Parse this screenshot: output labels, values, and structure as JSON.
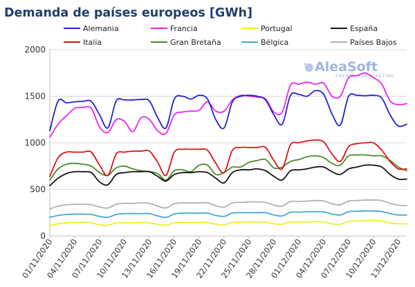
{
  "chart_data": {
    "type": "line",
    "title": "Demanda de países europeos [GWh]",
    "xlabel": "",
    "ylabel": "",
    "ylim": [
      0,
      2000
    ],
    "yticks": [
      0,
      500,
      1000,
      1500,
      2000
    ],
    "x_start": "01/11/2020",
    "x_end": "14/12/2020",
    "x_tick_labels": [
      "01/11/2020",
      "04/11/2020",
      "07/11/2020",
      "10/11/2020",
      "13/11/2020",
      "16/11/2020",
      "19/11/2020",
      "22/11/2020",
      "25/11/2020",
      "28/11/2020",
      "01/12/2020",
      "04/12/2020",
      "07/12/2020",
      "10/12/2020",
      "13/12/2020"
    ],
    "grid": "horizontal",
    "legend_placement": "top",
    "logo": {
      "main": "AleaSoft",
      "sub": "ENERGY FORECASTING"
    },
    "series": [
      {
        "name": "Alemania",
        "color": "#1f1fd6",
        "values": [
          1130,
          1450,
          1430,
          1440,
          1445,
          1445,
          1300,
          1160,
          1450,
          1460,
          1460,
          1465,
          1450,
          1270,
          1160,
          1470,
          1500,
          1470,
          1510,
          1470,
          1250,
          1160,
          1440,
          1500,
          1510,
          1500,
          1460,
          1300,
          1200,
          1510,
          1520,
          1500,
          1560,
          1520,
          1310,
          1190,
          1500,
          1510,
          1505,
          1510,
          1480,
          1300,
          1180,
          1200
        ]
      },
      {
        "name": "Francia",
        "color": "#ee22ee",
        "values": [
          1060,
          1200,
          1290,
          1370,
          1380,
          1370,
          1170,
          1110,
          1250,
          1230,
          1120,
          1270,
          1250,
          1130,
          1100,
          1300,
          1330,
          1340,
          1350,
          1440,
          1340,
          1340,
          1460,
          1510,
          1500,
          1490,
          1470,
          1330,
          1330,
          1620,
          1630,
          1650,
          1630,
          1640,
          1500,
          1500,
          1700,
          1720,
          1750,
          1700,
          1630,
          1450,
          1410,
          1420
        ]
      },
      {
        "name": "Portugal",
        "color": "#f0ee22",
        "values": [
          110,
          130,
          140,
          145,
          145,
          140,
          120,
          115,
          140,
          140,
          140,
          145,
          140,
          125,
          115,
          140,
          145,
          145,
          145,
          145,
          125,
          120,
          145,
          150,
          150,
          150,
          150,
          130,
          125,
          150,
          150,
          150,
          155,
          150,
          130,
          125,
          155,
          160,
          165,
          165,
          160,
          140,
          130,
          130
        ]
      },
      {
        "name": "España",
        "color": "#111111",
        "values": [
          540,
          620,
          670,
          690,
          690,
          680,
          580,
          550,
          660,
          680,
          690,
          690,
          690,
          640,
          590,
          660,
          680,
          680,
          690,
          680,
          620,
          570,
          680,
          710,
          710,
          720,
          700,
          640,
          600,
          700,
          710,
          720,
          740,
          740,
          690,
          660,
          720,
          740,
          760,
          760,
          740,
          660,
          610,
          610
        ]
      },
      {
        "name": "Italia",
        "color": "#dd1111",
        "values": [
          640,
          840,
          900,
          900,
          900,
          900,
          760,
          650,
          880,
          900,
          910,
          910,
          910,
          790,
          650,
          900,
          930,
          930,
          930,
          920,
          780,
          680,
          920,
          950,
          950,
          950,
          950,
          810,
          720,
          980,
          1000,
          1020,
          1030,
          1010,
          880,
          800,
          960,
          990,
          1000,
          1000,
          920,
          800,
          720,
          720
        ]
      },
      {
        "name": "Gran Bretaña",
        "color": "#4a8a2a",
        "values": [
          600,
          720,
          770,
          780,
          770,
          750,
          680,
          650,
          730,
          750,
          720,
          700,
          690,
          670,
          600,
          700,
          710,
          690,
          760,
          760,
          660,
          680,
          740,
          740,
          790,
          810,
          820,
          730,
          740,
          800,
          820,
          850,
          860,
          840,
          780,
          760,
          860,
          870,
          870,
          860,
          860,
          810,
          740,
          700
        ]
      },
      {
        "name": "Bélgica",
        "color": "#44a8cc",
        "values": [
          200,
          220,
          230,
          235,
          235,
          230,
          210,
          200,
          230,
          240,
          240,
          240,
          240,
          215,
          200,
          235,
          245,
          245,
          245,
          245,
          220,
          210,
          245,
          250,
          250,
          250,
          250,
          225,
          215,
          255,
          255,
          260,
          260,
          258,
          235,
          225,
          260,
          265,
          268,
          268,
          262,
          240,
          225,
          225
        ]
      },
      {
        "name": "Países Bajos",
        "color": "#b0b0b0",
        "values": [
          290,
          320,
          335,
          340,
          340,
          335,
          310,
          300,
          340,
          350,
          350,
          355,
          350,
          320,
          300,
          345,
          355,
          355,
          355,
          355,
          325,
          310,
          355,
          360,
          365,
          365,
          360,
          330,
          320,
          370,
          370,
          375,
          380,
          375,
          345,
          335,
          375,
          380,
          385,
          385,
          380,
          350,
          330,
          325
        ]
      }
    ]
  }
}
